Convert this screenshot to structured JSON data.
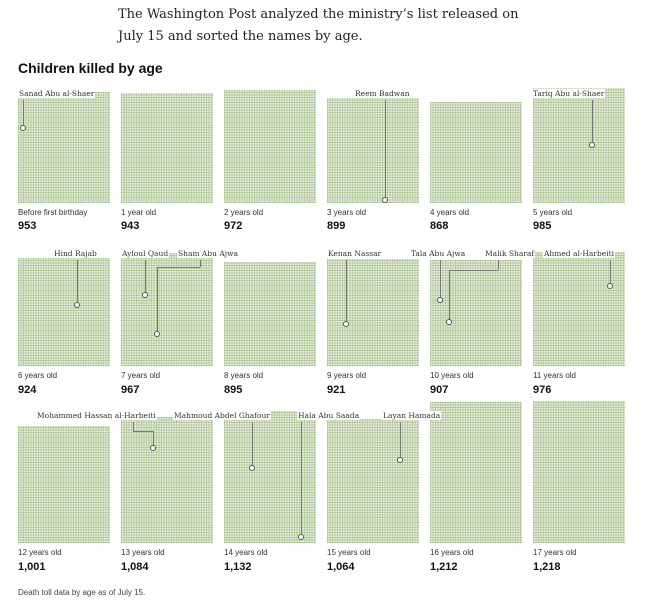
{
  "intro_text": "The Washington Post analyzed the ministry’s list released on July 15 and sorted the names by age.",
  "chart_data": {
    "type": "unit-grid",
    "title": "Children killed by age",
    "note": "Death toll data by age as of July 15.",
    "categories": [
      "Before first birthday",
      "1 year old",
      "2 years old",
      "3 years old",
      "4 years old",
      "5 years old",
      "6 years old",
      "7 years old",
      "8 years old",
      "9 years old",
      "10 years old",
      "11 years old",
      "12 years old",
      "13 years old",
      "14 years old",
      "15 years old",
      "16 years old",
      "17 years old"
    ],
    "counts": [
      "953",
      "943",
      "972",
      "899",
      "868",
      "985",
      "924",
      "967",
      "895",
      "921",
      "907",
      "976",
      "1,001",
      "1,084",
      "1,132",
      "1,064",
      "1,212",
      "1,218"
    ],
    "values": [
      953,
      943,
      972,
      899,
      868,
      985,
      924,
      967,
      895,
      921,
      907,
      976,
      1001,
      1084,
      1132,
      1064,
      1212,
      1218
    ],
    "ylim": [
      0,
      1218
    ],
    "annotations": [
      {
        "name": "Sanad Abu al-Shaer",
        "age_index": 0
      },
      {
        "name": "Reem Badwan",
        "age_index": 3
      },
      {
        "name": "Tariq Abu al-Shaer",
        "age_index": 5
      },
      {
        "name": "Hind Rajab",
        "age_index": 6
      },
      {
        "name": "Ayloul Qaud",
        "age_index": 7
      },
      {
        "name": "Sham Abu Ajwa",
        "age_index": 7
      },
      {
        "name": "Kenan Nassar",
        "age_index": 9
      },
      {
        "name": "Tala Abu Ajwa",
        "age_index": 10
      },
      {
        "name": "Malik Sharaf",
        "age_index": 10
      },
      {
        "name": "Ahmed al-Harbeiti",
        "age_index": 11
      },
      {
        "name": "Mohammed Hassan al-Harbeiti",
        "age_index": 13
      },
      {
        "name": "Mahmoud Abdel Ghafour",
        "age_index": 14
      },
      {
        "name": "Hala Abu Saada",
        "age_index": 14
      },
      {
        "name": "Layan Hamada",
        "age_index": 15
      }
    ],
    "colors": {
      "grid": "#e9f0df",
      "gridline": "#96b278",
      "marker": "#555555"
    }
  }
}
